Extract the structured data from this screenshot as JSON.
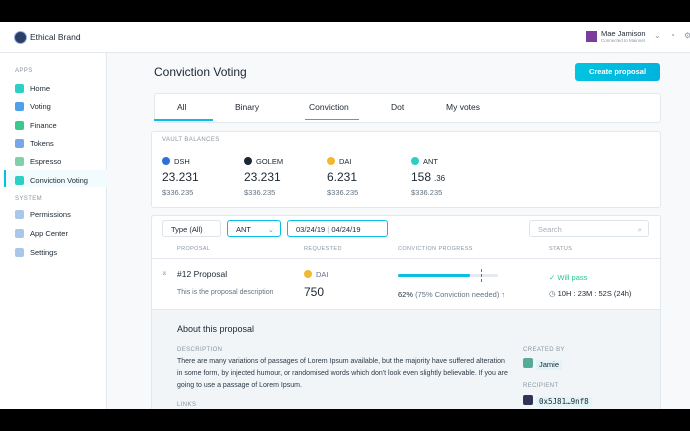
{
  "header": {
    "org": "Ethical Brand",
    "user_name": "Mae Jamison",
    "user_network": "Connected to Mainnet"
  },
  "sidebar": {
    "apps_label": "APPS",
    "apps": [
      "Home",
      "Voting",
      "Finance",
      "Tokens",
      "Espresso",
      "Conviction Voting"
    ],
    "system_label": "SYSTEM",
    "system": [
      "Permissions",
      "App Center",
      "Settings"
    ]
  },
  "page": {
    "title": "Conviction Voting",
    "button": "Create proposal",
    "tabs": [
      "All",
      "Binary",
      "Conviction",
      "Dot",
      "My votes"
    ]
  },
  "vault": {
    "label": "VAULT BALANCES",
    "tokens": [
      {
        "symbol": "DSH",
        "amount": "23.231",
        "usd": "$336.235"
      },
      {
        "symbol": "GOLEM",
        "amount": "23.231",
        "usd": "$336.235"
      },
      {
        "symbol": "DAI",
        "amount": "6.231",
        "usd": "$336.235"
      },
      {
        "symbol": "ANT",
        "amount": "158",
        "decimals": ".36",
        "usd": "$336.235"
      }
    ]
  },
  "filters": {
    "type": "Type (All)",
    "token": "ANT",
    "date_start": "03/24/19",
    "date_end": "04/24/19",
    "search": "Search"
  },
  "table": {
    "headers": [
      "PROPOSAL",
      "REQUESTED",
      "CONVICTION PROGRESS",
      "STATUS"
    ],
    "row": {
      "number": "#12",
      "name": "Proposal",
      "description": "This is the proposal description",
      "token": "DAI",
      "amount": "750",
      "progress": "62%",
      "needed": "(75% Conviction needed)",
      "status": "Will pass",
      "timer": "10H : 23M : 52S (24h)"
    }
  },
  "details": {
    "title": "About this proposal",
    "description_label": "DESCRIPTION",
    "description": "There are many variations of passages of Lorem Ipsum available, but the majority have suffered alteration in some form, by injected humour, or randomised words which don't look even slightly believable. If you are going to use a passage of Lorem Ipsum.",
    "links_label": "LINKS",
    "created_by_label": "CREATED BY",
    "creator": "Jamie",
    "recipient_label": "RECIPIENT",
    "recipient": "0x5J81…9nf8"
  }
}
